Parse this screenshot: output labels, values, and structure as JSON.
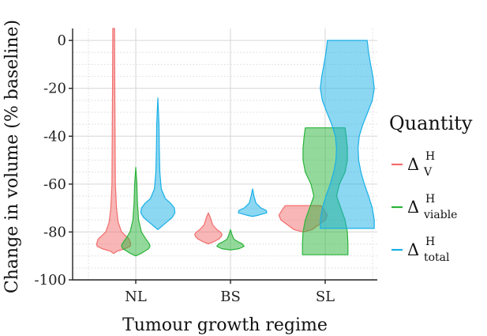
{
  "chart_data": {
    "type": "violin",
    "xlabel": "Tumour growth regime",
    "ylabel": "Change in volume (% baseline)",
    "ylim": [
      -100,
      5
    ],
    "yticks": [
      0,
      -20,
      -40,
      -60,
      -80,
      -100
    ],
    "categories": [
      "NL",
      "BS",
      "SL"
    ],
    "grid": true,
    "legend": {
      "title": "Quantity",
      "placement": "right",
      "entries": [
        {
          "key": "V",
          "main": "Δ",
          "sup": "H",
          "sub": "V",
          "color": "#f26d6d"
        },
        {
          "key": "viable",
          "main": "Δ",
          "sup": "H",
          "sub": "viable",
          "color": "#2ab33a"
        },
        {
          "key": "total",
          "main": "Δ",
          "sup": "H",
          "sub": "total",
          "color": "#1ab0e6"
        }
      ]
    },
    "series": [
      {
        "name": "ΔHV",
        "color": "#f26d6d",
        "violins": [
          {
            "category": "NL",
            "profile": [
              [
                5,
                0.03
              ],
              [
                -20,
                0.04
              ],
              [
                -40,
                0.05
              ],
              [
                -60,
                0.06
              ],
              [
                -70,
                0.1
              ],
              [
                -76,
                0.16
              ],
              [
                -80,
                0.28
              ],
              [
                -83,
                0.55
              ],
              [
                -85,
                0.6
              ],
              [
                -86,
                0.58
              ],
              [
                -87,
                0.4
              ],
              [
                -88,
                0.12
              ],
              [
                -89,
                0.0
              ]
            ]
          },
          {
            "category": "BS",
            "profile": [
              [
                -72,
                0.0
              ],
              [
                -74,
                0.07
              ],
              [
                -77,
                0.15
              ],
              [
                -79,
                0.3
              ],
              [
                -80,
                0.42
              ],
              [
                -81,
                0.48
              ],
              [
                -82,
                0.45
              ],
              [
                -83,
                0.36
              ],
              [
                -84,
                0.2
              ],
              [
                -85,
                0.0
              ]
            ]
          },
          {
            "category": "SL",
            "profile": [
              [
                -69,
                0.63
              ],
              [
                -71,
                0.75
              ],
              [
                -73,
                0.85
              ],
              [
                -75,
                0.78
              ],
              [
                -77,
                0.55
              ],
              [
                -79,
                0.32
              ],
              [
                -80,
                0.0
              ]
            ]
          }
        ]
      },
      {
        "name": "ΔHviable",
        "color": "#2ab33a",
        "violins": [
          {
            "category": "NL",
            "profile": [
              [
                -53,
                0.0
              ],
              [
                -60,
                0.04
              ],
              [
                -68,
                0.06
              ],
              [
                -75,
                0.1
              ],
              [
                -80,
                0.2
              ],
              [
                -83,
                0.36
              ],
              [
                -85,
                0.48
              ],
              [
                -86,
                0.5
              ],
              [
                -87,
                0.45
              ],
              [
                -88,
                0.32
              ],
              [
                -89,
                0.18
              ],
              [
                -90,
                0.0
              ]
            ]
          },
          {
            "category": "BS",
            "profile": [
              [
                -79,
                0.0
              ],
              [
                -81,
                0.05
              ],
              [
                -83,
                0.12
              ],
              [
                -84,
                0.25
              ],
              [
                -85,
                0.42
              ],
              [
                -86,
                0.48
              ],
              [
                -87,
                0.3
              ],
              [
                -87.5,
                0.0
              ]
            ]
          },
          {
            "category": "SL",
            "profile": [
              [
                -36.5,
                0.7
              ],
              [
                -40,
                0.74
              ],
              [
                -45,
                0.78
              ],
              [
                -50,
                0.78
              ],
              [
                -55,
                0.7
              ],
              [
                -60,
                0.5
              ],
              [
                -65,
                0.4
              ],
              [
                -70,
                0.55
              ],
              [
                -75,
                0.7
              ],
              [
                -80,
                0.78
              ],
              [
                -85,
                0.8
              ],
              [
                -89.5,
                0.8
              ]
            ]
          }
        ]
      },
      {
        "name": "ΔHtotal",
        "color": "#1ab0e6",
        "violins": [
          {
            "category": "NL",
            "profile": [
              [
                -24,
                0.0
              ],
              [
                -35,
                0.04
              ],
              [
                -45,
                0.05
              ],
              [
                -55,
                0.07
              ],
              [
                -62,
                0.12
              ],
              [
                -66,
                0.26
              ],
              [
                -68,
                0.45
              ],
              [
                -70,
                0.58
              ],
              [
                -72,
                0.6
              ],
              [
                -74,
                0.5
              ],
              [
                -76,
                0.3
              ],
              [
                -78,
                0.1
              ],
              [
                -79,
                0.0
              ]
            ]
          },
          {
            "category": "BS",
            "profile": [
              [
                -62,
                0.0
              ],
              [
                -65,
                0.05
              ],
              [
                -68,
                0.12
              ],
              [
                -70,
                0.3
              ],
              [
                -71,
                0.48
              ],
              [
                -72,
                0.5
              ],
              [
                -73,
                0.2
              ],
              [
                -73.5,
                0.0
              ]
            ]
          },
          {
            "category": "SL",
            "profile": [
              [
                0,
                0.7
              ],
              [
                -5,
                0.75
              ],
              [
                -10,
                0.82
              ],
              [
                -15,
                0.9
              ],
              [
                -20,
                0.95
              ],
              [
                -25,
                0.88
              ],
              [
                -30,
                0.72
              ],
              [
                -35,
                0.55
              ],
              [
                -40,
                0.42
              ],
              [
                -45,
                0.38
              ],
              [
                -50,
                0.4
              ],
              [
                -55,
                0.48
              ],
              [
                -60,
                0.6
              ],
              [
                -65,
                0.75
              ],
              [
                -70,
                0.88
              ],
              [
                -75,
                0.95
              ],
              [
                -78.5,
                0.95
              ]
            ]
          }
        ]
      }
    ]
  }
}
